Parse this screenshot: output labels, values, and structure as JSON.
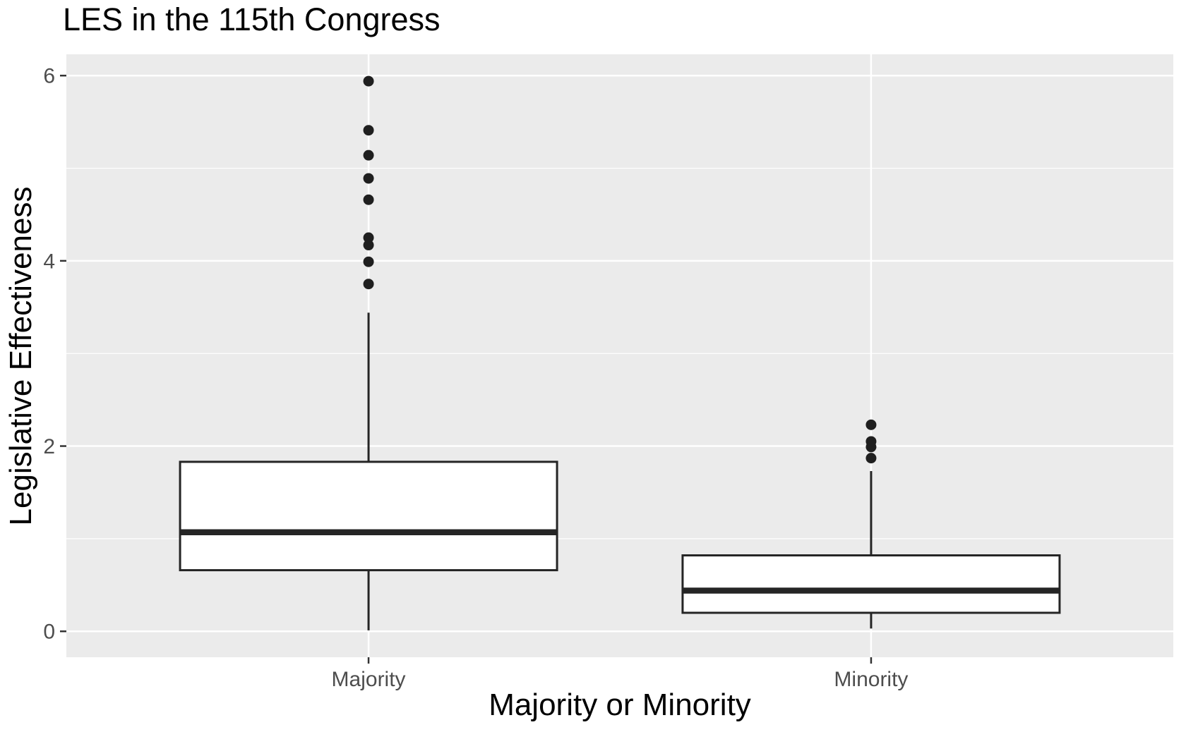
{
  "chart_data": {
    "type": "boxplot",
    "title": "LES in the 115th Congress",
    "xlabel": "Majority or Minority",
    "ylabel": "Legislative Effectiveness",
    "categories": [
      "Majority",
      "Minority"
    ],
    "y_tick_labels": [
      "0",
      "2",
      "4",
      "6"
    ],
    "y_tick_values": [
      0,
      2,
      4,
      6
    ],
    "y_minor_tick_values": [
      1,
      3,
      5
    ],
    "ylim": [
      -0.28,
      6.23
    ],
    "grid": "white major+minor horizontal and vertical-at-category lines on gray panel",
    "legend": "none",
    "series": [
      {
        "name": "Majority",
        "whisker_low": 0.01,
        "q1": 0.66,
        "median": 1.07,
        "q3": 1.83,
        "whisker_high": 3.44,
        "outliers": [
          3.75,
          3.99,
          4.17,
          4.25,
          4.66,
          4.89,
          5.14,
          5.41,
          5.94
        ]
      },
      {
        "name": "Minority",
        "whisker_low": 0.03,
        "q1": 0.2,
        "median": 0.44,
        "q3": 0.82,
        "whisker_high": 1.73,
        "outliers": [
          1.87,
          1.99,
          2.05,
          2.23
        ]
      }
    ],
    "colors": {
      "panel_bg": "#EBEBEB",
      "grid": "#FFFFFF",
      "box_stroke": "#252525",
      "box_fill": "#FFFFFF",
      "outlier": "#1F1F1F",
      "axis_text": "#4D4D4D",
      "tick_mark": "#333333",
      "title_text": "#000000"
    }
  }
}
